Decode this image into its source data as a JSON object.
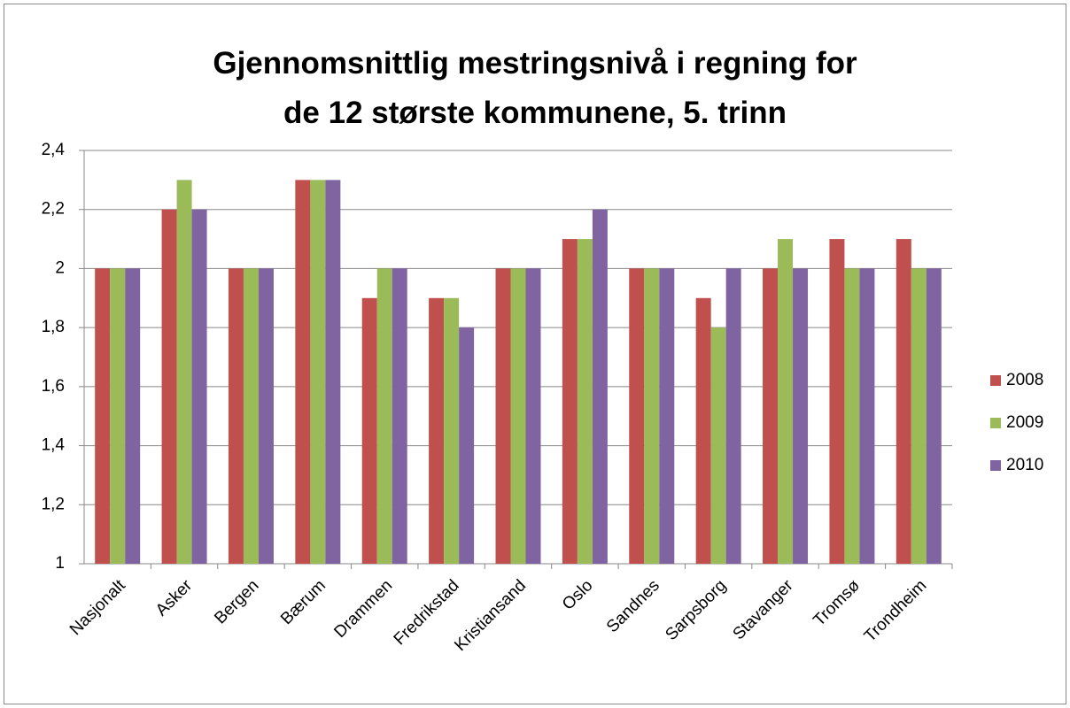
{
  "chart_data": {
    "type": "bar",
    "title": "Gjennomsnittlig mestringsnivå i regning for de 12 største kommunene, 5. trinn",
    "categories": [
      "Nasjonalt",
      "Asker",
      "Bergen",
      "Bærum",
      "Drammen",
      "Fredrikstad",
      "Kristiansand",
      "Oslo",
      "Sandnes",
      "Sarpsborg",
      "Stavanger",
      "Tromsø",
      "Trondheim"
    ],
    "series": [
      {
        "name": "2008",
        "color": "#c0504d",
        "values": [
          2,
          2.2,
          2,
          2.3,
          1.9,
          1.9,
          2,
          2.1,
          2,
          1.9,
          2,
          2.1,
          2.1
        ]
      },
      {
        "name": "2009",
        "color": "#9bbb59",
        "values": [
          2,
          2.3,
          2,
          2.3,
          2,
          1.9,
          2,
          2.1,
          2,
          1.8,
          2.1,
          2,
          2
        ]
      },
      {
        "name": "2010",
        "color": "#8064a2",
        "values": [
          2,
          2.2,
          2,
          2.3,
          2,
          1.8,
          2,
          2.2,
          2,
          2,
          2,
          2,
          2
        ]
      }
    ],
    "ylim": [
      1,
      2.4
    ],
    "yticks": [
      1,
      {
        "value": 1.2,
        "label": "1,2"
      },
      {
        "value": 1.4,
        "label": "1,4"
      },
      {
        "value": 1.6,
        "label": "1,6"
      },
      {
        "value": 1.8,
        "label": "1,8"
      },
      2,
      {
        "value": 2.2,
        "label": "2,2"
      },
      {
        "value": 2.4,
        "label": "2,4"
      }
    ],
    "grid": true,
    "legend": "right"
  }
}
